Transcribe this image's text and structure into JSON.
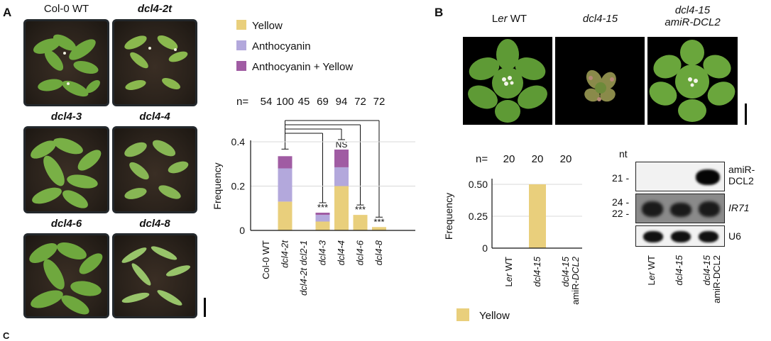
{
  "panelA": {
    "letter": "A",
    "photo_labels": [
      "Col-0 WT",
      "dcl4-2t",
      "dcl4-3",
      "dcl4-4",
      "dcl4-6",
      "dcl4-8"
    ]
  },
  "panelB": {
    "letter": "B",
    "photo_labels": {
      "ler_prefix": "L",
      "ler_italic": "er",
      "ler_suffix": " WT",
      "dcl415": "dcl4-15",
      "dcl415_line1": "dcl4-15",
      "dcl415_line2": "amiR-DCL2"
    },
    "blot": {
      "nt_label": "nt",
      "size_21": "21 -",
      "size_24": "24 -",
      "size_22": "22 -",
      "row1_line1": "amiR-",
      "row1_line2": "DCL2",
      "row2": "IR71",
      "row3": "U6",
      "lanes": [
        {
          "prefix": "L",
          "italic": "er",
          "suffix": " WT"
        },
        {
          "prefix": "",
          "italic": "dcl4-15",
          "suffix": ""
        },
        {
          "prefix": "",
          "italic": "dcl4-15",
          "suffix": "",
          "line2": "amiR-DCL2"
        }
      ]
    }
  },
  "next_panel_letter": "C",
  "chart_data": [
    {
      "type": "bar",
      "stacked": true,
      "categories": [
        "Col-0 WT",
        "dcl4-2t",
        "dcl4-2t dcl2-1",
        "dcl4-3",
        "dcl4-4",
        "dcl4-6",
        "dcl4-8"
      ],
      "n_label": "n=",
      "n_values": [
        "54",
        "100",
        "45",
        "69",
        "94",
        "72",
        "72"
      ],
      "series": [
        {
          "name": "Yellow",
          "color": "#e9cf7c",
          "values": [
            0,
            0.13,
            0,
            0.04,
            0.2,
            0.07,
            0.015
          ]
        },
        {
          "name": "Anthocyanin",
          "color": "#b3a8dc",
          "values": [
            0,
            0.15,
            0,
            0.03,
            0.085,
            0,
            0
          ]
        },
        {
          "name": "Anthocyanin + Yellow",
          "color": "#a05ca3",
          "values": [
            0,
            0.055,
            0,
            0.01,
            0.08,
            0,
            0
          ]
        }
      ],
      "ylabel": "Frequency",
      "ylim": [
        0,
        0.4
      ],
      "yticks": [
        "0",
        "0.2",
        "0.4"
      ],
      "significance": [
        "",
        "",
        "",
        "***",
        "NS",
        "***",
        "***"
      ],
      "legend_position": "top"
    },
    {
      "type": "bar",
      "categories": [
        {
          "prefix": "L",
          "italic": "er",
          "suffix": " WT"
        },
        {
          "prefix": "",
          "italic": "dcl4-15",
          "suffix": ""
        },
        {
          "prefix": "",
          "italic": "dcl4-15",
          "suffix": "",
          "line2_prefix": "amiR-",
          "line2_italic": "DCL2"
        }
      ],
      "n_label": "n=",
      "n_values": [
        "20",
        "20",
        "20"
      ],
      "series": [
        {
          "name": "Yellow",
          "color": "#e9cf7c",
          "values": [
            0,
            0.5,
            0
          ]
        }
      ],
      "ylabel": "Frequency",
      "ylim": [
        0,
        0.5
      ],
      "yticks": [
        "0",
        "0.25",
        "0.50"
      ],
      "legend_position": "bottom-left"
    }
  ]
}
